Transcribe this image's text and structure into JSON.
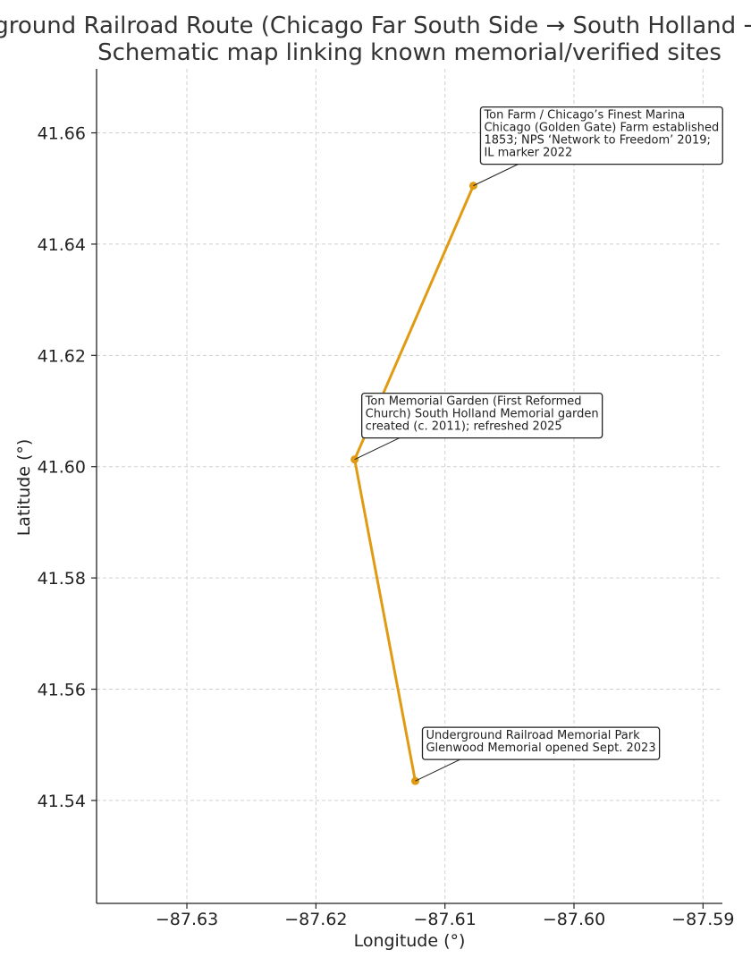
{
  "chart_data": {
    "type": "line",
    "title_lines": [
      "Underground Railroad Route (Chicago Far South Side → South Holland → Glenwood)",
      "Schematic map linking known memorial/verified sites"
    ],
    "xlabel": "Longitude (°)",
    "ylabel": "Latitude (°)",
    "xlim": [
      -87.637,
      -87.5885
    ],
    "ylim": [
      41.5215,
      41.6715
    ],
    "xticks": [
      -87.63,
      -87.62,
      -87.61,
      -87.6,
      -87.59
    ],
    "xtick_labels": [
      "−87.63",
      "−87.62",
      "−87.61",
      "−87.60",
      "−87.59"
    ],
    "yticks": [
      41.54,
      41.56,
      41.58,
      41.6,
      41.62,
      41.64,
      41.66
    ],
    "ytick_labels": [
      "41.54",
      "41.56",
      "41.58",
      "41.60",
      "41.62",
      "41.64",
      "41.66"
    ],
    "grid": true,
    "line_color": "#e09b12",
    "points": [
      {
        "lon": -87.6078,
        "lat": 41.6505,
        "label_lines": [
          "Ton Farm / Chicago’s Finest Marina",
          "Chicago (Golden Gate) Farm established",
          "1853; NPS ‘Network to Freedom’ 2019;",
          "IL marker 2022"
        ]
      },
      {
        "lon": -87.617,
        "lat": 41.6013,
        "label_lines": [
          "Ton Memorial Garden (First Reformed",
          "Church) South Holland Memorial garden",
          "created (c. 2011); refreshed 2025"
        ]
      },
      {
        "lon": -87.6123,
        "lat": 41.5435,
        "label_lines": [
          "Underground Railroad Memorial Park",
          "Glenwood Memorial opened Sept. 2023"
        ]
      }
    ]
  }
}
